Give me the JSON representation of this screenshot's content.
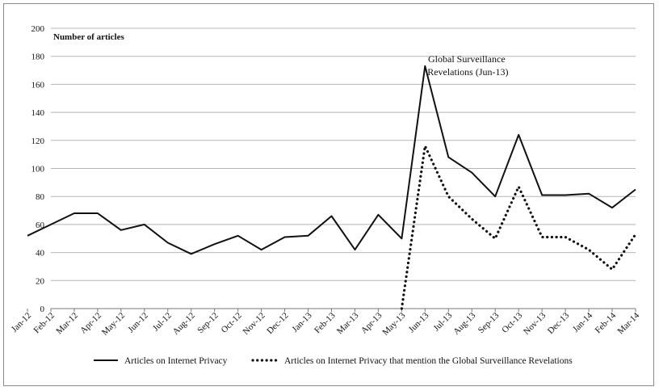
{
  "chart_data": {
    "type": "line",
    "ylabel": "Number of articles",
    "ylim": [
      0,
      200
    ],
    "yticks": [
      0,
      20,
      40,
      60,
      80,
      100,
      120,
      140,
      160,
      180,
      200
    ],
    "grid": "horizontal",
    "legend_position": "bottom",
    "categories": [
      "Jan-12",
      "Feb-12",
      "Mar-12",
      "Apr-12",
      "May-12",
      "Jun-12",
      "Jul-12",
      "Aug-12",
      "Sep-12",
      "Oct-12",
      "Nov-12",
      "Dec-12",
      "Jan-13",
      "Feb-13",
      "Mar-13",
      "Apr-13",
      "May-13",
      "Jun-13",
      "Jul-13",
      "Aug-13",
      "Sep-13",
      "Oct-13",
      "Nov-13",
      "Dec-13",
      "Jan-14",
      "Feb-14",
      "Mar-14"
    ],
    "series": [
      {
        "name": "Articles on Internet Privacy",
        "style": "solid",
        "values": [
          52,
          60,
          68,
          68,
          56,
          60,
          47,
          39,
          46,
          52,
          42,
          51,
          52,
          66,
          42,
          67,
          50,
          173,
          108,
          97,
          80,
          124,
          81,
          81,
          82,
          72,
          85
        ]
      },
      {
        "name": "Articles on Internet Privacy that mention the Global Surveillance Revelations",
        "style": "dotted",
        "values": [
          null,
          null,
          null,
          null,
          null,
          null,
          null,
          null,
          null,
          null,
          null,
          null,
          null,
          null,
          null,
          null,
          0,
          116,
          80,
          64,
          50,
          87,
          51,
          51,
          42,
          28,
          53
        ]
      }
    ],
    "annotations": [
      {
        "text_lines": [
          "Global Surveillance",
          "Revelations (Jun-13)"
        ],
        "at_category": "Jun-13"
      }
    ]
  }
}
